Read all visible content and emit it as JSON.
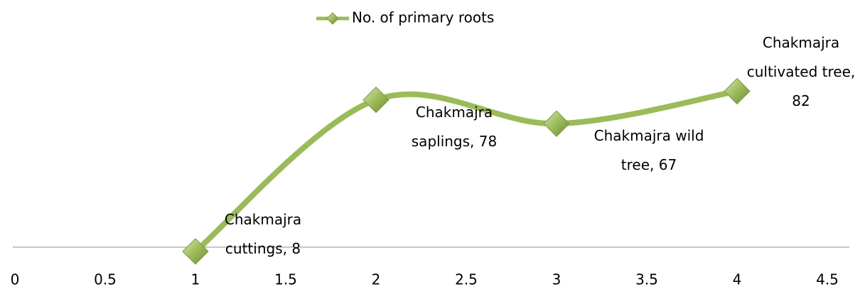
{
  "chart_data": {
    "type": "line",
    "x": [
      1,
      2,
      3,
      4
    ],
    "series": [
      {
        "name": "No. of primary roots",
        "color": "#9bbb59",
        "values": [
          8,
          78,
          67,
          82
        ],
        "value_labels": [
          "Chakmajra cuttings, 8",
          "Chakmajra saplings, 78",
          "Chakmajra wild tree, 67",
          "Chakmajra cultivated tree, 82"
        ]
      }
    ],
    "xlim": [
      0,
      4.5
    ],
    "xticks": [
      0,
      0.5,
      1,
      1.5,
      2,
      2.5,
      3,
      3.5,
      4,
      4.5
    ],
    "ylim": [
      10,
      90
    ],
    "legend": "top",
    "smooth": true
  }
}
